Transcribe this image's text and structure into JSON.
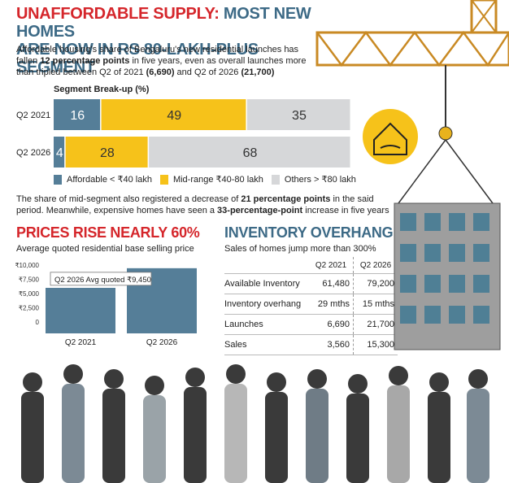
{
  "headline": {
    "red": "UNAFFORDABLE SUPPLY:",
    "blue_1": "MOST NEW HOMES",
    "blue_2": "ARE NOW IN RS 80-LAKH-PLUS SEGMENT"
  },
  "intro": {
    "t1": "Affordable housing's share of Bengaluru's new residential launches has fallen",
    "b1": "12 percentage points",
    "t2": "in five years, even as overall launches more than tripled between Q2 of 2021",
    "b2": "(6,690)",
    "t3": "and Q2 of 2026",
    "b3": "(21,700)"
  },
  "mid_note": {
    "t1": "The share of mid-segment also registered a decrease of",
    "b1": "21 percentage points",
    "t2": "in the said period. Meanwhile, expensive homes have seen a",
    "b2": "33-percentage-point",
    "t3": "increase in five years"
  },
  "prices": {
    "title": "PRICES RISE NEARLY 60%",
    "subtitle": "Average quoted residential base selling price"
  },
  "inventory": {
    "title": "INVENTORY OVERHANG",
    "subtitle": "Sales of homes jump more than 300%"
  },
  "chart_data": [
    {
      "type": "bar",
      "orientation": "horizontal-stacked",
      "title": "Segment Break-up (%)",
      "categories": [
        "Q2 2021",
        "Q2 2026"
      ],
      "series": [
        {
          "name": "Affordable < ₹40 lakh",
          "values": [
            16,
            4
          ],
          "color": "#557e98"
        },
        {
          "name": "Mid-range ₹40-80 lakh",
          "values": [
            49,
            28
          ],
          "color": "#f6c21a"
        },
        {
          "name": "Others > ₹80 lakh",
          "values": [
            35,
            68
          ],
          "color": "#d6d7d9"
        }
      ],
      "xlim": [
        0,
        100
      ],
      "legend": "bottom"
    },
    {
      "type": "bar",
      "categories": [
        "Q2 2021",
        "Q2 2026"
      ],
      "values": [
        6000,
        9450
      ],
      "yticks": [
        0,
        2500,
        5000,
        7500,
        10000
      ],
      "ytick_labels": [
        "0",
        "₹2,500",
        "₹5,000",
        "₹7,500",
        "₹10,000"
      ],
      "ylim": [
        0,
        10000
      ],
      "annotation": "Q2 2026 Avg quoted ₹9,450",
      "color": "#557e98"
    },
    {
      "type": "table",
      "columns": [
        "",
        "Q2 2021",
        "Q2 2026"
      ],
      "rows": [
        [
          "Available Inventory",
          "61,480",
          "79,200"
        ],
        [
          "Inventory overhang",
          "29 mths",
          "15 mths"
        ],
        [
          "Launches",
          "6,690",
          "21,700"
        ],
        [
          "Sales",
          "3,560",
          "15,300"
        ]
      ]
    }
  ]
}
